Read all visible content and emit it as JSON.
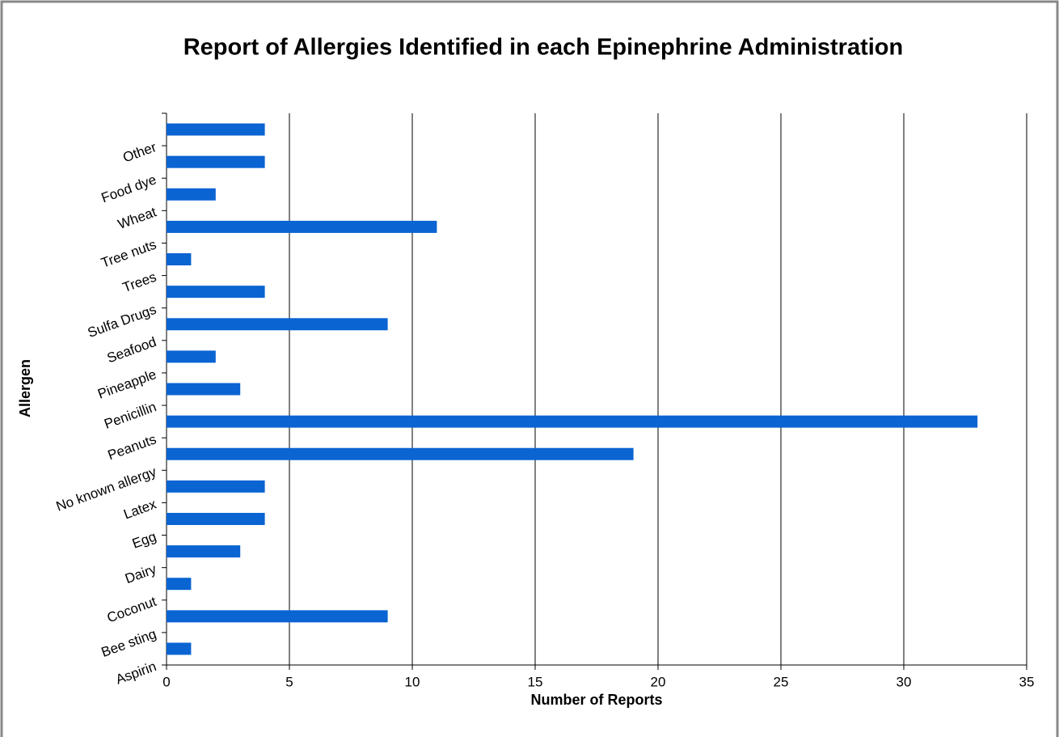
{
  "chart_data": {
    "type": "bar",
    "orientation": "horizontal",
    "title": "Report of Allergies Identified in each Epinephrine Administration",
    "x_label": "Number of Reports",
    "y_label": "Allergen",
    "categories": [
      "Aspirin",
      "Bee sting",
      "Coconut",
      "Dairy",
      "Egg",
      "Latex",
      "No known allergy",
      "Peanuts",
      "Penicillin",
      "Pineapple",
      "Seafood",
      "Sulfa Drugs",
      "Trees",
      "Tree nuts",
      "Wheat",
      "Food dye",
      "Other"
    ],
    "values": [
      1,
      9,
      1,
      3,
      4,
      4,
      19,
      33,
      3,
      2,
      9,
      4,
      1,
      11,
      2,
      4,
      4
    ],
    "color": "#0a64d2",
    "xlim": [
      0,
      35
    ],
    "xticks": [
      0,
      5,
      10,
      15,
      20,
      25,
      30,
      35
    ],
    "grid": true
  }
}
